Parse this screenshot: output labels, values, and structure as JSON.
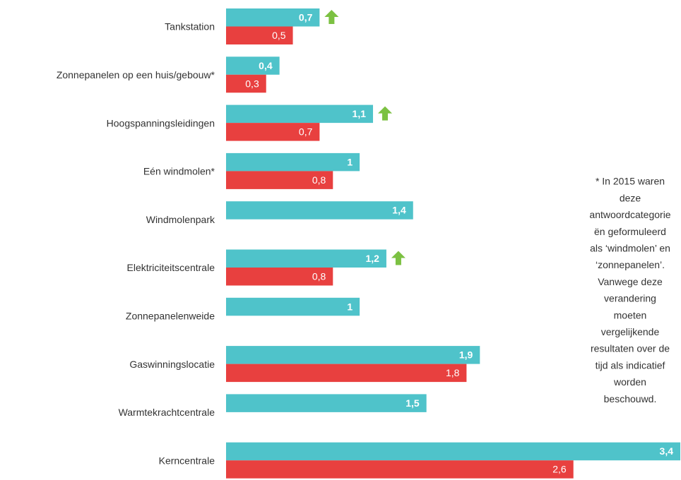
{
  "chart_data": {
    "type": "bar",
    "orientation": "horizontal",
    "categories": [
      "Tankstation",
      "Zonnepanelen op een huis/gebouw*",
      "Hoogspanningsleidingen",
      "Eén windmolen*",
      "Windmolenpark",
      "Elektriciteitscentrale",
      "Zonnepanelenweide",
      "Gaswinningslocatie",
      "Warmtekrachtcentrale",
      "Kerncentrale"
    ],
    "series": [
      {
        "color": "#4fc3ca",
        "values": [
          0.7,
          0.4,
          1.1,
          1,
          1.4,
          1.2,
          1,
          1.9,
          1.5,
          3.4
        ],
        "value_labels": [
          "0,7",
          "0,4",
          "1,1",
          "1",
          "1,4",
          "1,2",
          "1",
          "1,9",
          "1,5",
          "3,4"
        ]
      },
      {
        "color": "#e8403f",
        "values": [
          0.5,
          0.3,
          0.7,
          0.8,
          null,
          0.8,
          null,
          1.8,
          null,
          2.6
        ],
        "value_labels": [
          "0,5",
          "0,3",
          "0,7",
          "0,8",
          null,
          "0,8",
          null,
          "1,8",
          null,
          "2,6"
        ]
      }
    ],
    "up_arrows": [
      0,
      2,
      5
    ],
    "arrow_color": "#7cc142",
    "xlim": [
      0,
      3.4
    ],
    "annotation": [
      "* In 2015 waren",
      "deze",
      "antwoordcategorie",
      "ën geformuleerd",
      "als ‘windmolen’ en",
      "‘zonnepanelen’.",
      "Vanwege deze",
      "verandering",
      "moeten",
      "vergelijkende",
      "resultaten over de",
      "tijd als indicatief",
      "worden",
      "beschouwd."
    ]
  }
}
